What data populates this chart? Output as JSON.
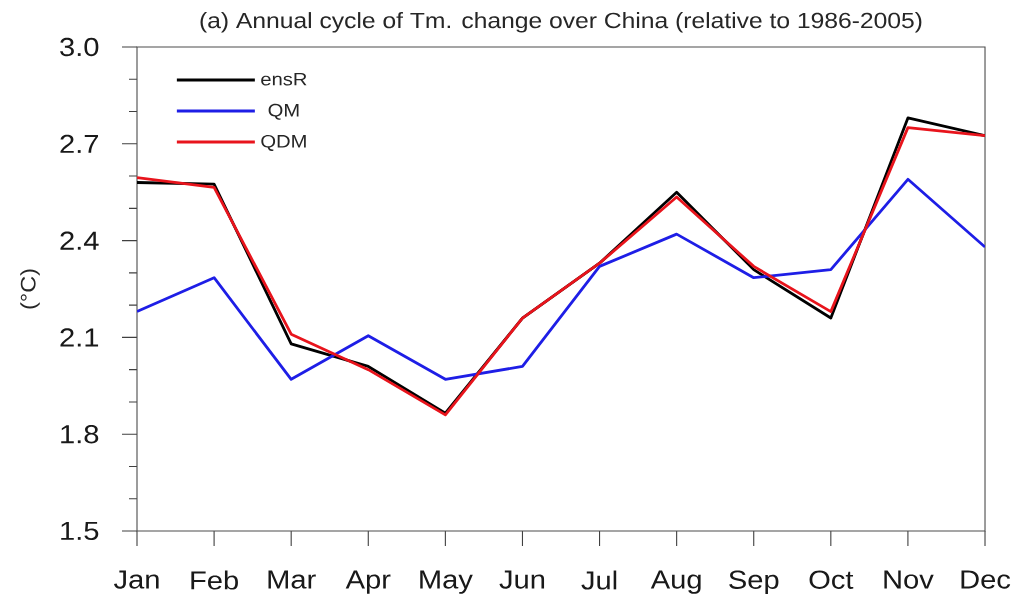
{
  "chart_data": {
    "type": "line",
    "title": "(a) Annual cycle of Tm. change over China (relative to 1986-2005)",
    "ylabel": "(°C)",
    "categories": [
      "Jan",
      "Feb",
      "Mar",
      "Apr",
      "May",
      "Jun",
      "Jul",
      "Aug",
      "Sep",
      "Oct",
      "Nov",
      "Dec"
    ],
    "series": [
      {
        "name": "ensR",
        "color": "#000000",
        "values": [
          2.58,
          2.575,
          2.08,
          2.01,
          1.865,
          2.16,
          2.33,
          2.55,
          2.31,
          2.16,
          2.78,
          2.725
        ]
      },
      {
        "name": "QM",
        "color": "#1e1ee6",
        "values": [
          2.18,
          2.285,
          1.97,
          2.105,
          1.97,
          2.01,
          2.32,
          2.42,
          2.285,
          2.31,
          2.59,
          2.38
        ]
      },
      {
        "name": "QDM",
        "color": "#e8141c",
        "values": [
          2.595,
          2.565,
          2.11,
          2.0,
          1.86,
          2.16,
          2.33,
          2.535,
          2.32,
          2.18,
          2.75,
          2.725
        ]
      }
    ],
    "ylim": [
      1.5,
      3.0
    ],
    "yticks": [
      1.5,
      {
        "value": 1.6,
        "label": null
      },
      {
        "value": 1.7,
        "label": null
      },
      1.8,
      {
        "value": 1.9,
        "label": null
      },
      {
        "value": 2.0,
        "label": null
      },
      2.1,
      {
        "value": 2.2,
        "label": null
      },
      {
        "value": 2.3,
        "label": null
      },
      2.4,
      {
        "value": 2.5,
        "label": null
      },
      {
        "value": 2.6,
        "label": null
      },
      2.7,
      {
        "value": 2.8,
        "label": null
      },
      {
        "value": 2.9,
        "label": null
      },
      {
        "value": 3.0,
        "label": "3.0"
      }
    ],
    "legend": "top left",
    "marker": "none",
    "line_style": "solid"
  }
}
